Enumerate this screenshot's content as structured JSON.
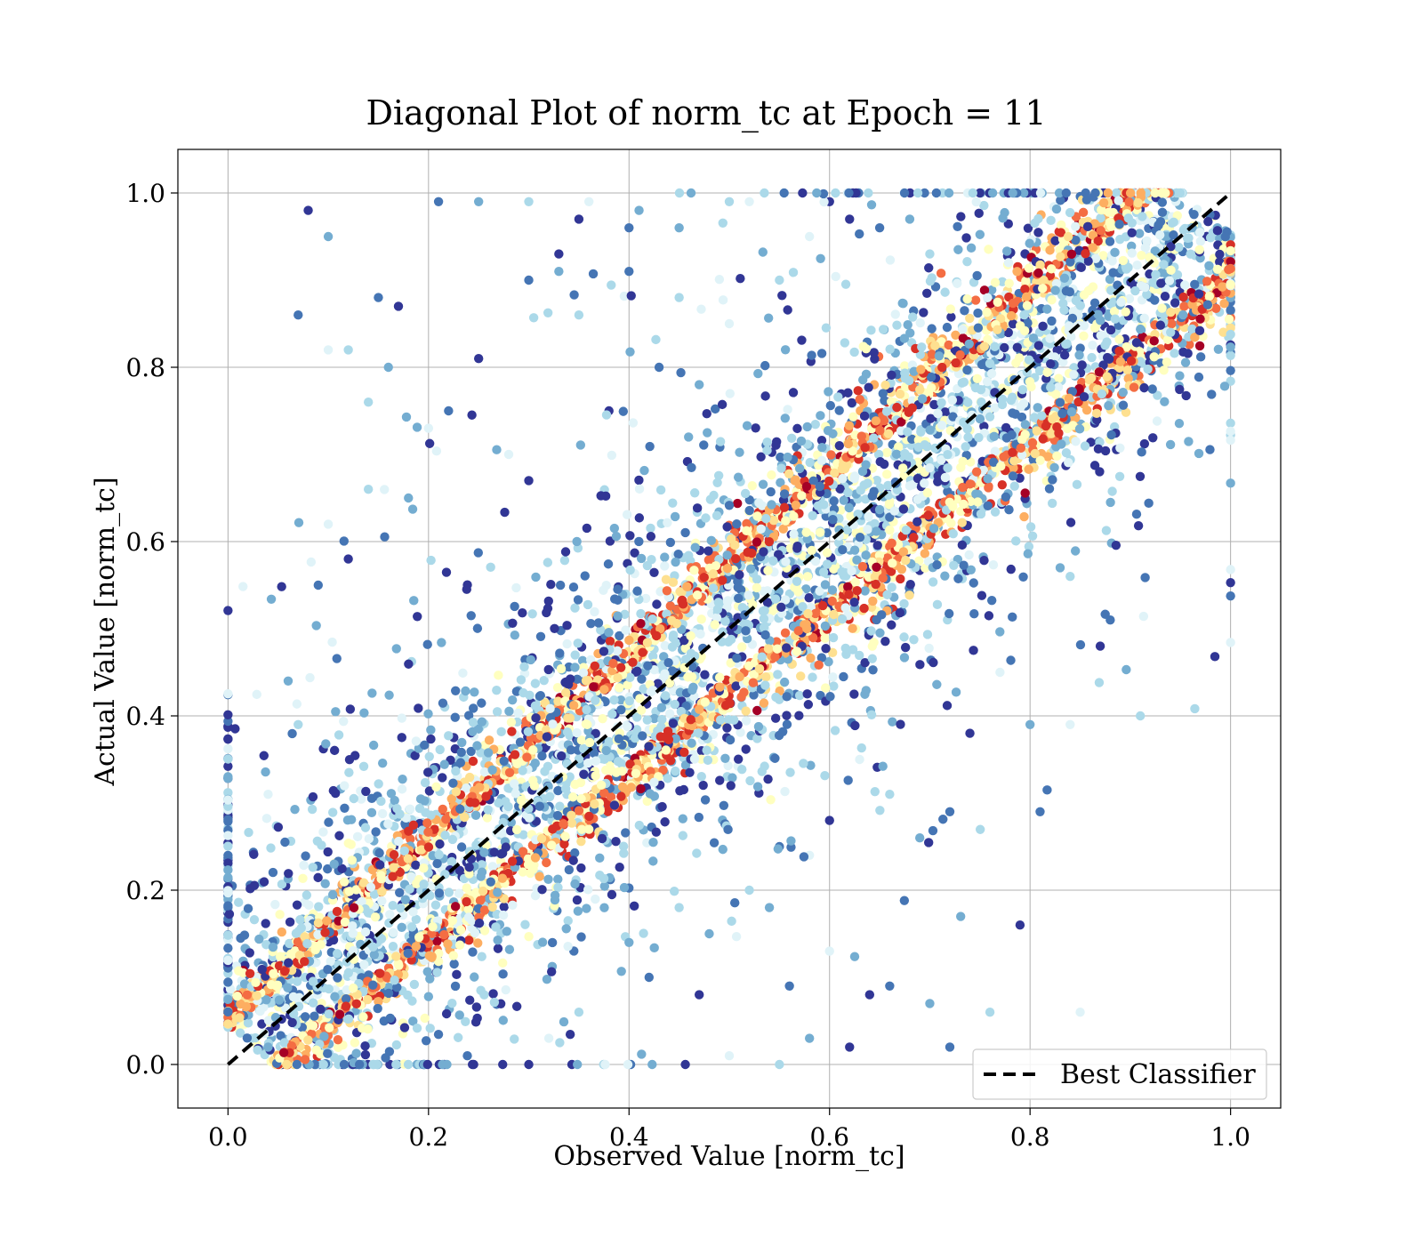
{
  "chart_data": {
    "type": "scatter",
    "title": "Diagonal Plot of norm_tc at Epoch = 11",
    "xlabel": "Observed Value [norm_tc]",
    "ylabel": "Actual Value [norm_tc]",
    "xlim": [
      -0.05,
      1.05
    ],
    "ylim": [
      -0.05,
      1.05
    ],
    "xticks": [
      "0.0",
      "0.2",
      "0.4",
      "0.6",
      "0.8",
      "1.0"
    ],
    "yticks": [
      "0.0",
      "0.2",
      "0.4",
      "0.6",
      "0.8",
      "1.0"
    ],
    "grid": true,
    "legend": {
      "placement": "lower-right",
      "entries": [
        "Best Classifier"
      ]
    },
    "reference_line": {
      "name": "Best Classifier",
      "x": [
        0,
        1
      ],
      "y": [
        0,
        1
      ],
      "style": "dashed",
      "color": "#000000"
    },
    "colormap": "RdYlBu",
    "colors": [
      "#313695",
      "#4575b4",
      "#74add1",
      "#abd9e9",
      "#e0f3f8",
      "#ffffbf",
      "#fee090",
      "#fdae61",
      "#f46d43",
      "#d73027",
      "#a50026"
    ],
    "distribution": "dense band of points along the diagonal y = x with two parallel high-density stripes, plus sparse outliers mostly above the diagonal",
    "outliers": [
      [
        0.08,
        0.98
      ],
      [
        0.07,
        0.86
      ],
      [
        0.1,
        0.95
      ],
      [
        0.12,
        0.82
      ],
      [
        0.1,
        0.82
      ],
      [
        0.17,
        0.87
      ],
      [
        0.21,
        0.99
      ],
      [
        0.25,
        0.99
      ],
      [
        0.3,
        0.99
      ],
      [
        0.36,
        0.99
      ],
      [
        0.35,
        0.97
      ],
      [
        0.4,
        0.96
      ],
      [
        0.41,
        0.98
      ],
      [
        0.5,
        0.99
      ],
      [
        0.52,
        0.99
      ],
      [
        0.6,
        0.99
      ],
      [
        0.15,
        0.88
      ],
      [
        0.16,
        0.8
      ],
      [
        0.14,
        0.76
      ],
      [
        0.2,
        0.73
      ],
      [
        0.25,
        0.81
      ],
      [
        0.3,
        0.9
      ],
      [
        0.33,
        0.91
      ],
      [
        0.35,
        0.86
      ],
      [
        0.28,
        0.7
      ],
      [
        0.3,
        0.67
      ],
      [
        0.22,
        0.75
      ],
      [
        0.18,
        0.65
      ],
      [
        0.14,
        0.66
      ],
      [
        0.1,
        0.62
      ],
      [
        0.12,
        0.58
      ],
      [
        0.09,
        0.55
      ],
      [
        0.06,
        0.44
      ],
      [
        0.07,
        0.39
      ],
      [
        0.04,
        0.31
      ],
      [
        0.33,
        0.93
      ],
      [
        0.4,
        0.91
      ],
      [
        0.45,
        0.96
      ],
      [
        0.45,
        0.88
      ],
      [
        0.5,
        0.85
      ],
      [
        0.38,
        0.75
      ],
      [
        0.43,
        0.8
      ],
      [
        0.47,
        0.78
      ],
      [
        0.55,
        0.9
      ],
      [
        0.58,
        0.95
      ],
      [
        0.62,
        0.97
      ],
      [
        0.65,
        0.96
      ],
      [
        0.68,
        0.97
      ],
      [
        0.7,
        0.93
      ],
      [
        0.6,
        0.13
      ],
      [
        0.62,
        0.02
      ],
      [
        0.72,
        0.02
      ],
      [
        0.7,
        0.07
      ],
      [
        0.76,
        0.06
      ],
      [
        0.85,
        0.06
      ],
      [
        0.79,
        0.16
      ],
      [
        0.81,
        0.29
      ],
      [
        0.8,
        0.39
      ],
      [
        0.91,
        0.4
      ],
      [
        0.84,
        0.39
      ],
      [
        0.87,
        0.48
      ],
      [
        0.88,
        0.51
      ],
      [
        0.83,
        0.57
      ],
      [
        0.84,
        0.56
      ],
      [
        0.77,
        0.45
      ],
      [
        0.74,
        0.38
      ],
      [
        0.72,
        0.29
      ],
      [
        0.69,
        0.26
      ],
      [
        0.66,
        0.31
      ],
      [
        0.63,
        0.35
      ],
      [
        0.64,
        0.08
      ],
      [
        0.66,
        0.09
      ],
      [
        0.58,
        0.03
      ],
      [
        0.55,
        0.0
      ],
      [
        0.5,
        0.01
      ],
      [
        0.47,
        0.08
      ],
      [
        0.42,
        0.1
      ],
      [
        0.4,
        0.14
      ],
      [
        0.35,
        0.06
      ],
      [
        0.32,
        0.03
      ],
      [
        0.3,
        0.0
      ],
      [
        0.56,
        0.09
      ],
      [
        0.54,
        0.18
      ],
      [
        0.52,
        0.2
      ],
      [
        0.58,
        0.24
      ],
      [
        0.6,
        0.28
      ],
      [
        0.55,
        0.25
      ],
      [
        0.48,
        0.15
      ],
      [
        0.45,
        0.18
      ]
    ]
  }
}
